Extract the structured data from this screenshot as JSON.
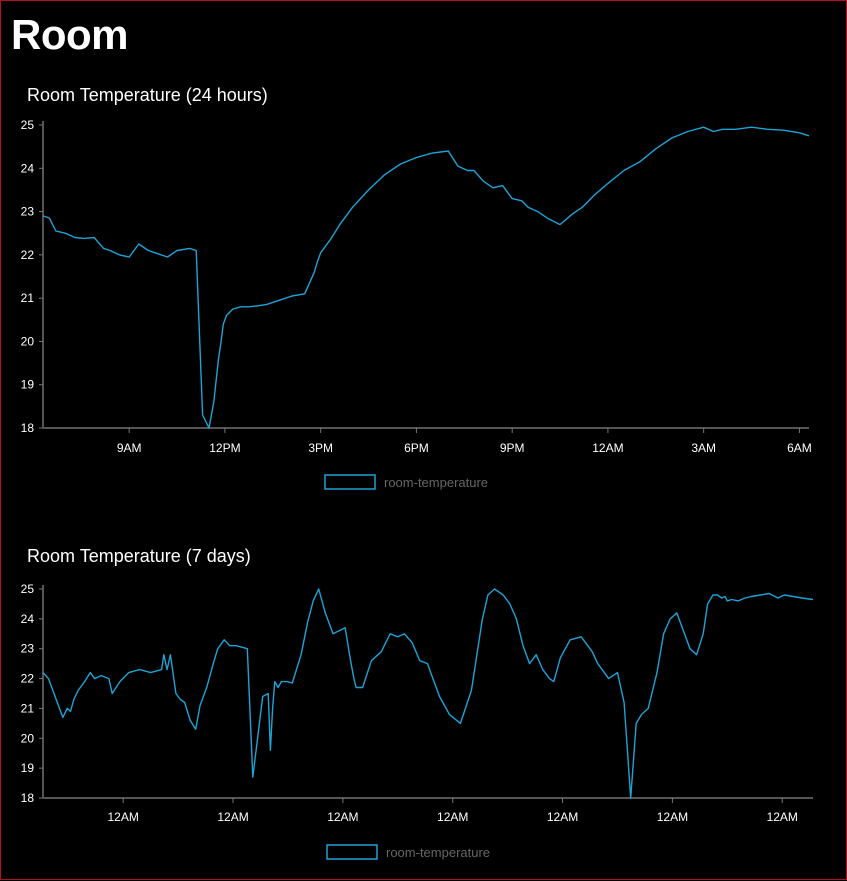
{
  "page": {
    "title": "Room"
  },
  "colors": {
    "line": "#1ea3d6",
    "background": "#000000",
    "axis": "#555555"
  },
  "chart_data": [
    {
      "type": "line",
      "title": "Room Temperature (24 hours)",
      "xlabel": "",
      "ylabel": "",
      "ylim": [
        18,
        25
      ],
      "y_ticks": [
        18,
        19,
        20,
        21,
        22,
        23,
        24,
        25
      ],
      "xlim": [
        6.3,
        30.3
      ],
      "x_ticks": [
        9,
        12,
        15,
        18,
        21,
        24,
        27,
        30
      ],
      "x_tick_labels": [
        "9AM",
        "12PM",
        "3PM",
        "6PM",
        "9PM",
        "12AM",
        "3AM",
        "6AM"
      ],
      "x_unit": "hour of day (continuing past midnight)",
      "legend": {
        "position": "bottom-center",
        "entries": [
          "room-temperature"
        ]
      },
      "grid": false,
      "series": [
        {
          "name": "room-temperature",
          "x": [
            6.3,
            6.5,
            6.7,
            7.0,
            7.3,
            7.6,
            7.9,
            8.2,
            8.4,
            8.7,
            9.0,
            9.3,
            9.6,
            9.8,
            10.2,
            10.5,
            10.9,
            11.1,
            11.3,
            11.5,
            11.65,
            11.8,
            11.88,
            11.95,
            12.05,
            12.25,
            12.5,
            12.75,
            13.0,
            13.3,
            13.7,
            14.1,
            14.5,
            14.8,
            14.9,
            15.0,
            15.3,
            15.6,
            16.0,
            16.5,
            17.0,
            17.5,
            18.0,
            18.5,
            19.0,
            19.3,
            19.6,
            19.8,
            20.1,
            20.4,
            20.7,
            21.0,
            21.3,
            21.5,
            21.8,
            22.1,
            22.5,
            22.9,
            23.2,
            23.6,
            24.0,
            24.5,
            25.0,
            25.5,
            26.0,
            26.5,
            27.0,
            27.3,
            27.6,
            28.0,
            28.5,
            29.0,
            29.5,
            30.0,
            30.3
          ],
          "y": [
            22.9,
            22.85,
            22.55,
            22.5,
            22.4,
            22.38,
            22.4,
            22.15,
            22.1,
            22.0,
            21.95,
            22.25,
            22.1,
            22.05,
            21.95,
            22.1,
            22.15,
            22.1,
            18.3,
            18.0,
            18.6,
            19.6,
            20.0,
            20.4,
            20.6,
            20.75,
            20.8,
            20.8,
            20.82,
            20.85,
            20.95,
            21.05,
            21.1,
            21.6,
            21.85,
            22.05,
            22.35,
            22.7,
            23.1,
            23.5,
            23.85,
            24.1,
            24.25,
            24.35,
            24.4,
            24.05,
            23.95,
            23.95,
            23.7,
            23.55,
            23.6,
            23.3,
            23.25,
            23.1,
            23.0,
            22.85,
            22.7,
            22.95,
            23.1,
            23.4,
            23.65,
            23.95,
            24.15,
            24.45,
            24.7,
            24.85,
            24.95,
            24.85,
            24.9,
            24.9,
            24.95,
            24.9,
            24.88,
            24.82,
            24.75
          ]
        }
      ]
    },
    {
      "type": "line",
      "title": "Room Temperature (7 days)",
      "xlabel": "",
      "ylabel": "",
      "ylim": [
        18,
        25
      ],
      "y_ticks": [
        18,
        19,
        20,
        21,
        22,
        23,
        24,
        25
      ],
      "xlim": [
        -0.73,
        6.28
      ],
      "x_ticks": [
        0,
        1,
        2,
        3,
        4,
        5,
        6
      ],
      "x_tick_labels": [
        "12AM",
        "12AM",
        "12AM",
        "12AM",
        "12AM",
        "12AM",
        "12AM"
      ],
      "x_unit": "days relative to first midnight shown",
      "legend": {
        "position": "bottom-center",
        "entries": [
          "room-temperature"
        ]
      },
      "grid": false,
      "series": [
        {
          "name": "room-temperature",
          "x": [
            -0.73,
            -0.68,
            -0.63,
            -0.58,
            -0.55,
            -0.51,
            -0.48,
            -0.45,
            -0.41,
            -0.35,
            -0.3,
            -0.26,
            -0.2,
            -0.13,
            -0.1,
            -0.03,
            0.05,
            0.15,
            0.25,
            0.35,
            0.37,
            0.4,
            0.43,
            0.48,
            0.52,
            0.56,
            0.61,
            0.66,
            0.7,
            0.76,
            0.82,
            0.86,
            0.92,
            0.97,
            1.03,
            1.13,
            1.18,
            1.27,
            1.32,
            1.34,
            1.36,
            1.38,
            1.41,
            1.44,
            1.47,
            1.49,
            1.54,
            1.62,
            1.68,
            1.73,
            1.78,
            1.84,
            1.91,
            2.02,
            2.07,
            2.1,
            2.12,
            2.18,
            2.26,
            2.35,
            2.43,
            2.5,
            2.56,
            2.63,
            2.7,
            2.77,
            2.82,
            2.88,
            2.97,
            3.07,
            3.17,
            3.27,
            3.32,
            3.38,
            3.46,
            3.52,
            3.58,
            3.64,
            3.7,
            3.76,
            3.82,
            3.88,
            3.92,
            3.98,
            4.07,
            4.17,
            4.27,
            4.32,
            4.42,
            4.5,
            4.56,
            4.62,
            4.67,
            4.72,
            4.78,
            4.86,
            4.92,
            4.98,
            5.04,
            5.1,
            5.16,
            5.22,
            5.28,
            5.32,
            5.37,
            5.41,
            5.45,
            5.48,
            5.5,
            5.54,
            5.6,
            5.66,
            5.72,
            5.8,
            5.88,
            5.96,
            6.02,
            6.1,
            6.18,
            6.28
          ],
          "y": [
            22.2,
            22.0,
            21.5,
            21.0,
            20.7,
            21.0,
            20.9,
            21.3,
            21.6,
            21.9,
            22.2,
            22.0,
            22.1,
            22.0,
            21.5,
            21.9,
            22.2,
            22.3,
            22.2,
            22.3,
            22.8,
            22.3,
            22.8,
            21.5,
            21.3,
            21.2,
            20.6,
            20.3,
            21.1,
            21.7,
            22.5,
            23.0,
            23.3,
            23.1,
            23.1,
            23.0,
            18.7,
            21.4,
            21.5,
            19.6,
            21.0,
            21.9,
            21.7,
            21.9,
            21.9,
            21.9,
            21.85,
            22.8,
            23.9,
            24.6,
            25.0,
            24.2,
            23.5,
            23.7,
            22.6,
            22.0,
            21.7,
            21.7,
            22.6,
            22.9,
            23.5,
            23.4,
            23.5,
            23.2,
            22.6,
            22.5,
            22.0,
            21.4,
            20.8,
            20.5,
            21.6,
            24.0,
            24.8,
            25.0,
            24.8,
            24.5,
            24.0,
            23.1,
            22.5,
            22.8,
            22.3,
            22.0,
            21.9,
            22.7,
            23.3,
            23.4,
            22.9,
            22.5,
            22.0,
            22.2,
            21.2,
            18.0,
            20.5,
            20.8,
            21.0,
            22.2,
            23.5,
            24.0,
            24.2,
            23.6,
            23.0,
            22.8,
            23.5,
            24.5,
            24.8,
            24.8,
            24.7,
            24.75,
            24.6,
            24.65,
            24.6,
            24.7,
            24.75,
            24.8,
            24.85,
            24.7,
            24.8,
            24.75,
            24.7,
            24.65
          ]
        }
      ]
    }
  ]
}
